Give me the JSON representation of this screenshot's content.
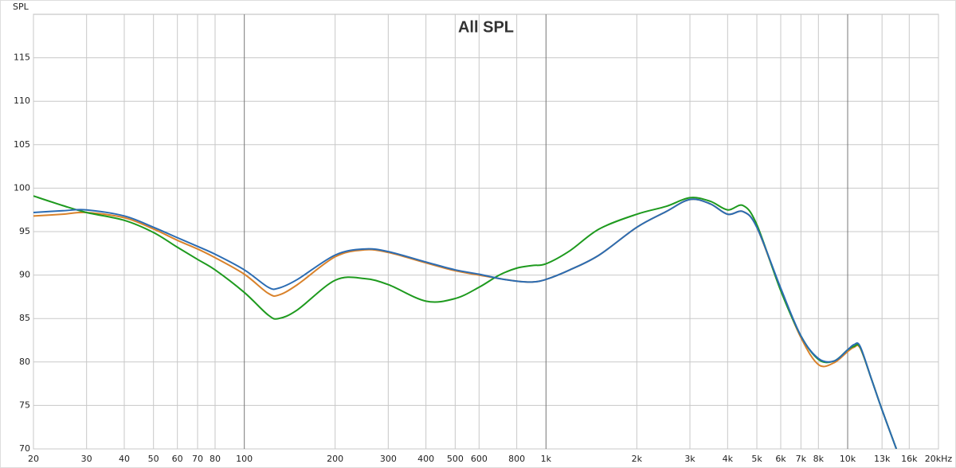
{
  "chart_data": {
    "type": "line",
    "title": "All SPL",
    "y_label": "SPL",
    "xscale": "log",
    "grid": true,
    "xlim": [
      20,
      20000
    ],
    "xticks": [
      20,
      30,
      40,
      50,
      60,
      70,
      80,
      100,
      200,
      300,
      400,
      500,
      600,
      800,
      {
        "value": 1000,
        "label": "1k"
      },
      {
        "value": 2000,
        "label": "2k"
      },
      {
        "value": 3000,
        "label": "3k"
      },
      {
        "value": 4000,
        "label": "4k"
      },
      {
        "value": 5000,
        "label": "5k"
      },
      {
        "value": 6000,
        "label": "6k"
      },
      {
        "value": 7000,
        "label": "7k"
      },
      {
        "value": 8000,
        "label": "8k"
      },
      {
        "value": 10000,
        "label": "10k"
      },
      {
        "value": 13000,
        "label": "13k"
      },
      {
        "value": 16000,
        "label": "16k"
      },
      {
        "value": 20000,
        "label": "20kHz"
      }
    ],
    "ylim": [
      70,
      120
    ],
    "yticks": [
      70,
      75,
      80,
      85,
      90,
      95,
      100,
      105,
      110,
      115
    ],
    "x": [
      20,
      25,
      30,
      40,
      50,
      60,
      70,
      80,
      100,
      120,
      130,
      150,
      200,
      250,
      300,
      400,
      500,
      600,
      700,
      800,
      900,
      1000,
      1200,
      1500,
      2000,
      2500,
      3000,
      3500,
      4000,
      4500,
      5000,
      6000,
      7000,
      8000,
      9000,
      10000,
      10500,
      11000,
      12000,
      13000,
      14500
    ],
    "series": [
      {
        "color": "#d9822b",
        "values": [
          96.8,
          97.0,
          97.2,
          96.6,
          95.3,
          94.0,
          93.0,
          92.0,
          90.1,
          87.9,
          87.7,
          88.9,
          92.1,
          92.9,
          92.6,
          91.4,
          90.5,
          90.0,
          89.6,
          89.3,
          89.2,
          89.5,
          90.6,
          92.3,
          95.5,
          97.3,
          98.7,
          98.2,
          97.0,
          97.3,
          95.5,
          88.3,
          82.8,
          79.7,
          79.9,
          81.2,
          81.7,
          81.6,
          78.0,
          74.5,
          70.0
        ]
      },
      {
        "color": "#1e9a1e",
        "values": [
          99.1,
          98.0,
          97.2,
          96.3,
          94.9,
          93.2,
          91.8,
          90.6,
          88.0,
          85.4,
          85.0,
          86.0,
          89.4,
          89.6,
          88.9,
          87.0,
          87.3,
          88.6,
          90.0,
          90.8,
          91.1,
          91.3,
          92.8,
          95.3,
          97.0,
          97.9,
          98.9,
          98.5,
          97.5,
          98.0,
          95.8,
          88.2,
          83.0,
          80.3,
          80.1,
          81.4,
          81.8,
          81.7,
          78.0,
          74.5,
          70.0
        ]
      },
      {
        "color": "#2b6cb3",
        "values": [
          97.2,
          97.4,
          97.5,
          96.8,
          95.5,
          94.3,
          93.3,
          92.4,
          90.6,
          88.6,
          88.5,
          89.5,
          92.3,
          93.0,
          92.7,
          91.5,
          90.6,
          90.1,
          89.6,
          89.3,
          89.2,
          89.5,
          90.6,
          92.3,
          95.5,
          97.3,
          98.7,
          98.2,
          97.0,
          97.3,
          95.5,
          88.5,
          83.0,
          80.4,
          80.1,
          81.4,
          82.0,
          81.8,
          78.0,
          74.5,
          70.0
        ]
      }
    ]
  }
}
